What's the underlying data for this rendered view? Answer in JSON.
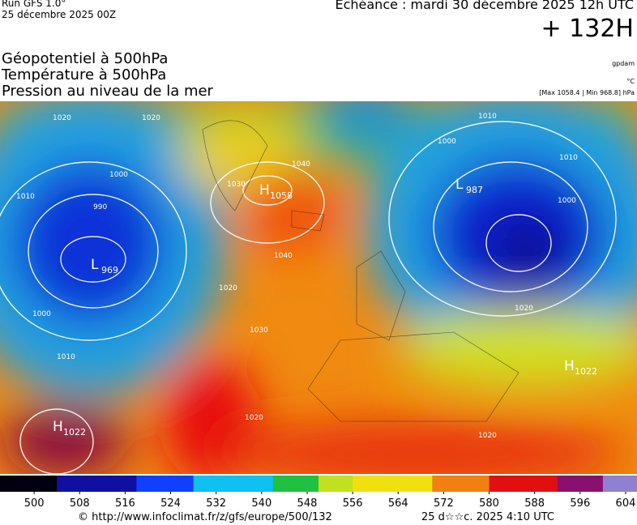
{
  "header": {
    "run": "Run GFS 1.0°",
    "run_date": "25 décembre 2025 00Z",
    "echeance": "Echéance : mardi 30 décembre 2025 12h UTC",
    "lead": "+ 132H"
  },
  "fields": [
    "Géopotentiel à 500hPa",
    "Température à 500hPa",
    "Pression au niveau de la mer"
  ],
  "units": [
    "gpdam",
    "°C",
    "[Max 1058.4 | Min 968.8] hPa"
  ],
  "centers": [
    {
      "letter": "H",
      "value": "1022"
    },
    {
      "letter": "H",
      "value": "1058"
    },
    {
      "letter": "L",
      "value": "987"
    },
    {
      "letter": "L",
      "value": "969"
    },
    {
      "letter": "H",
      "value": "1022"
    }
  ],
  "isobar_labels": [
    "1020",
    "1010",
    "1000",
    "990",
    "1000",
    "1010",
    "1020",
    "1030",
    "1040",
    "1040",
    "1020",
    "1030",
    "1020",
    "1010",
    "1000",
    "1010",
    "1000",
    "1020",
    "1020"
  ],
  "colorbar": {
    "ticks": [
      500,
      508,
      516,
      524,
      532,
      540,
      548,
      556,
      564,
      572,
      580,
      588,
      596,
      604
    ],
    "lim": [
      494,
      606
    ]
  },
  "footer": {
    "url": "© http://www.infoclimat.fr/z/gfs/europe/500/132",
    "generated": "25 d☆☆c. 2025  4:10 UTC"
  }
}
